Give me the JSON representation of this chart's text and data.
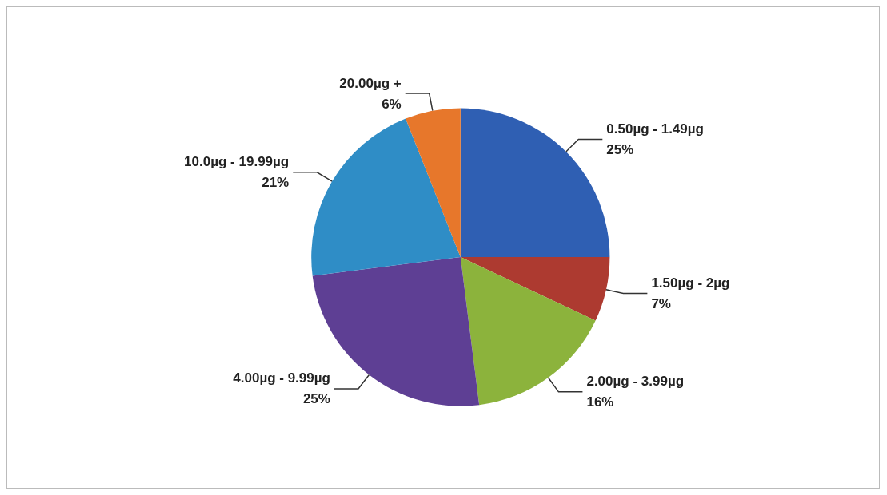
{
  "chart_data": {
    "type": "pie",
    "categories": [
      "0.50µg - 1.49µg",
      "1.50µg - 2µg",
      "2.00µg - 3.99µg",
      "4.00µg - 9.99µg",
      "10.0µg - 19.99µg",
      "20.00µg +"
    ],
    "values": [
      25,
      7,
      16,
      25,
      21,
      6
    ],
    "value_labels": [
      "25%",
      "7%",
      "16%",
      "25%",
      "21%",
      "6%"
    ],
    "colors": [
      "#2f5fb3",
      "#ad3a30",
      "#8cb33c",
      "#5e3f94",
      "#2f8dc6",
      "#e7772b"
    ],
    "legend": false
  }
}
